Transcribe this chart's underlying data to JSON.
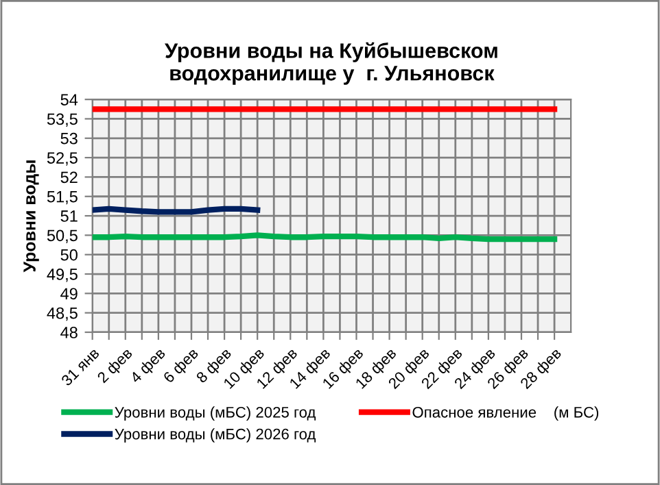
{
  "chart_data": {
    "type": "line",
    "title": "Уровни воды на Куйбышевском\nводохранилище у  г. Ульяновск",
    "ylabel": "Уровни воды",
    "categories": [
      "31 янв",
      null,
      "2 фев",
      null,
      "4 фев",
      null,
      "6 фев",
      null,
      "8 фев",
      null,
      "10 фев",
      null,
      "12 фев",
      null,
      "14 фев",
      null,
      "16 фев",
      null,
      "18 фев",
      null,
      "20 фев",
      null,
      "22 фев",
      null,
      "24 фев",
      null,
      "26 фев",
      null,
      "28 фев"
    ],
    "series": [
      {
        "name": "Уровни воды (мБС) 2025 год",
        "color": "#00b050",
        "values": [
          50.45,
          50.45,
          50.47,
          50.45,
          50.45,
          50.45,
          50.45,
          50.45,
          50.45,
          50.47,
          50.5,
          50.47,
          50.45,
          50.45,
          50.47,
          50.47,
          50.47,
          50.45,
          50.45,
          50.45,
          50.45,
          50.42,
          50.45,
          50.42,
          50.4,
          50.4,
          50.4,
          50.4,
          50.4
        ]
      },
      {
        "name": "Опасное явление    (м БС)",
        "color": "#ff0000",
        "values": [
          53.75,
          53.75,
          53.75,
          53.75,
          53.75,
          53.75,
          53.75,
          53.75,
          53.75,
          53.75,
          53.75,
          53.75,
          53.75,
          53.75,
          53.75,
          53.75,
          53.75,
          53.75,
          53.75,
          53.75,
          53.75,
          53.75,
          53.75,
          53.75,
          53.75,
          53.75,
          53.75,
          53.75,
          53.75
        ]
      },
      {
        "name": "Уровни воды (мБС) 2026 год",
        "color": "#002060",
        "values": [
          51.15,
          51.18,
          51.15,
          51.12,
          51.1,
          51.1,
          51.1,
          51.15,
          51.18,
          51.18,
          51.15,
          null,
          null,
          null,
          null,
          null,
          null,
          null,
          null,
          null,
          null,
          null,
          null,
          null,
          null,
          null,
          null,
          null,
          null
        ]
      }
    ],
    "ylim": [
      48,
      54
    ],
    "yticks": [
      {
        "value": 48,
        "label": "48"
      },
      {
        "value": 48.5,
        "label": "48,5"
      },
      {
        "value": 49,
        "label": "49"
      },
      {
        "value": 49.5,
        "label": "49,5"
      },
      {
        "value": 50,
        "label": "50"
      },
      {
        "value": 50.5,
        "label": "50,5"
      },
      {
        "value": 51,
        "label": "51"
      },
      {
        "value": 51.5,
        "label": "51,5"
      },
      {
        "value": 52,
        "label": "52"
      },
      {
        "value": 52.5,
        "label": "52,5"
      },
      {
        "value": 53,
        "label": "53"
      },
      {
        "value": 53.5,
        "label": "53,5"
      },
      {
        "value": 54,
        "label": "54"
      }
    ],
    "grid": true,
    "legend": "bottom"
  }
}
